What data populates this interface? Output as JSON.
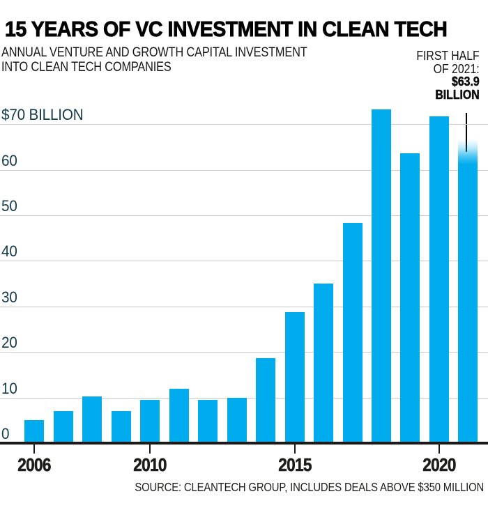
{
  "header": {
    "title": "15 YEARS OF VC INVESTMENT IN CLEAN TECH",
    "subtitle_line1": "ANNUAL VENTURE AND GROWTH CAPITAL INVESTMENT",
    "subtitle_line2": "INTO CLEAN TECH COMPANIES"
  },
  "annotation": {
    "line1": "FIRST HALF",
    "line2": "OF 2021:",
    "line3": "$63.9",
    "line4": "BILLION"
  },
  "source": "SOURCE: CLEANTECH GROUP, INCLUDES DEALS ABOVE $350 MILLION",
  "colors": {
    "bar": "#00ACEE",
    "y_axis_label": "#14394B",
    "gridline": "#C9C9C9",
    "axis_line": "#1A1A1A",
    "text": "#000000"
  },
  "chart_data": {
    "type": "bar",
    "title": "15 YEARS OF VC INVESTMENT IN CLEAN TECH",
    "subtitle": "ANNUAL VENTURE AND GROWTH CAPITAL INVESTMENT INTO CLEAN TECH COMPANIES",
    "unit": "USD billions",
    "categories": [
      2006,
      2007,
      2008,
      2009,
      2010,
      2011,
      2012,
      2013,
      2014,
      2015,
      2016,
      2017,
      2018,
      2019,
      2020,
      2021
    ],
    "values": [
      5.1,
      7.1,
      10.3,
      7.0,
      9.5,
      11.9,
      9.5,
      10.0,
      18.7,
      28.8,
      35.0,
      48.4,
      73.2,
      63.6,
      71.7,
      63.9
    ],
    "last_bar_partial": true,
    "last_bar_note": "First half of 2021: $63.9 billion (bar fades out at top)",
    "ylim": [
      0,
      75
    ],
    "grid": true,
    "legend": "none",
    "y_ticks": [
      {
        "value": 70,
        "label": "$70 BILLION"
      },
      {
        "value": 60,
        "label": "60"
      },
      {
        "value": 50,
        "label": "50"
      },
      {
        "value": 40,
        "label": "40"
      },
      {
        "value": 30,
        "label": "30"
      },
      {
        "value": 20,
        "label": "20"
      },
      {
        "value": 10,
        "label": "10"
      },
      {
        "value": 0,
        "label": "0"
      }
    ],
    "x_ticks": [
      {
        "value": 2006,
        "label": "2006"
      },
      {
        "value": 2010,
        "label": "2010"
      },
      {
        "value": 2015,
        "label": "2015"
      },
      {
        "value": 2020,
        "label": "2020"
      }
    ]
  }
}
